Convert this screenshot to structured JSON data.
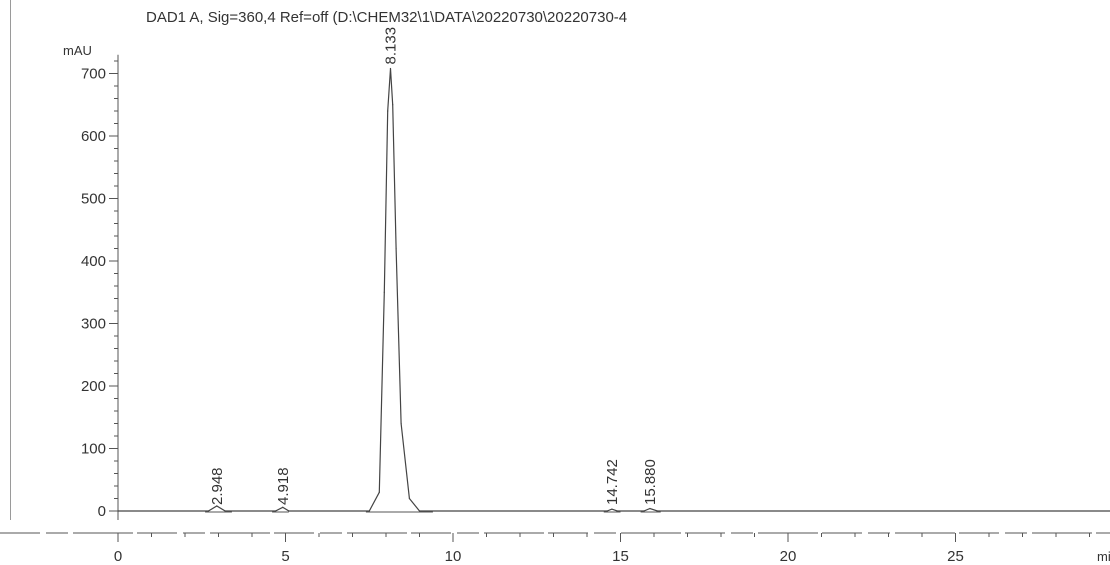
{
  "chart_data": {
    "type": "line",
    "title": "DAD1 A, Sig=360,4 Ref=off (D:\\CHEM32\\1\\DATA\\20220730\\20220730-4",
    "ylabel": "mAU",
    "xlabel": "mi",
    "xlim": [
      0,
      30
    ],
    "ylim": [
      -10,
      730
    ],
    "x_ticks": [
      "0",
      "5",
      "10",
      "15",
      "20",
      "25"
    ],
    "y_ticks": [
      "0",
      "100",
      "200",
      "300",
      "400",
      "500",
      "600",
      "700"
    ],
    "grid": false,
    "series": [
      {
        "x": [
          0,
          2.7,
          2.95,
          3.2,
          4.7,
          4.918,
          5.1,
          7.5,
          7.8,
          7.95,
          8.05,
          8.133,
          8.2,
          8.3,
          8.45,
          8.7,
          9.0,
          14.6,
          14.742,
          14.9,
          15.7,
          15.88,
          16.1,
          30
        ],
        "y": [
          0,
          0,
          8,
          0,
          0,
          6,
          0,
          0,
          30,
          350,
          640,
          708,
          650,
          420,
          140,
          20,
          0,
          0,
          3,
          0,
          0,
          4,
          0,
          0
        ]
      }
    ],
    "peaks": [
      {
        "label": "2.948",
        "x": 2.948
      },
      {
        "label": "4.918",
        "x": 4.918
      },
      {
        "label": "8.133",
        "x": 8.133
      },
      {
        "label": "14.742",
        "x": 14.742
      },
      {
        "label": "15.880",
        "x": 15.88
      }
    ],
    "colors": {
      "trace": "#444444",
      "axis": "#555555",
      "text": "#333333"
    }
  }
}
